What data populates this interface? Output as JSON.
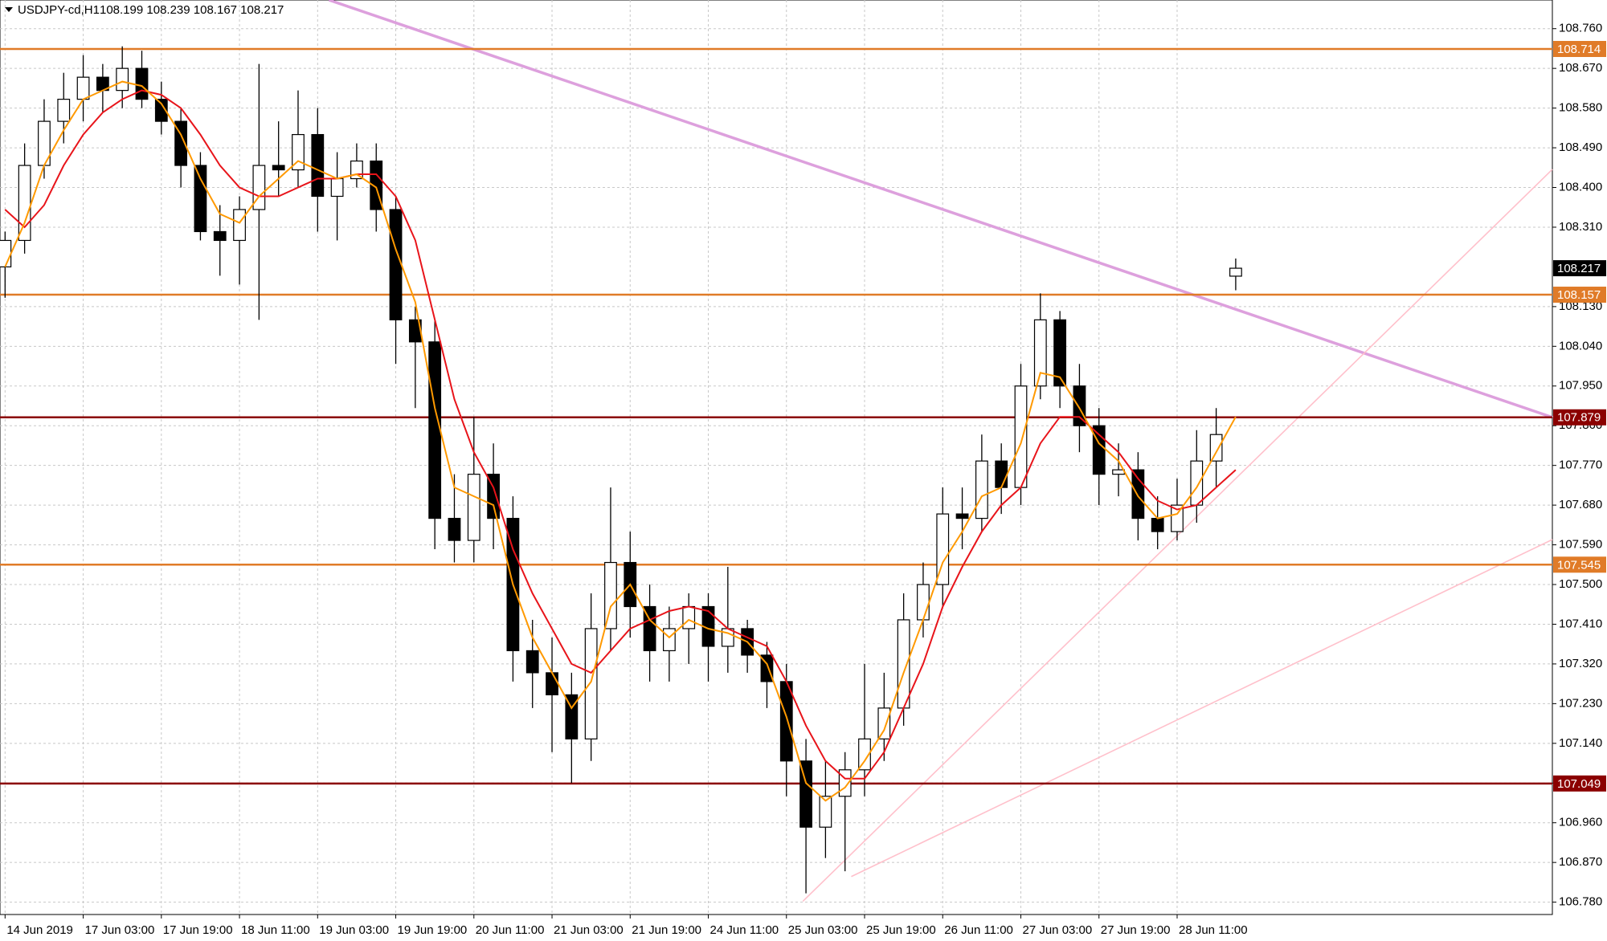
{
  "chart_data": {
    "type": "candlestick",
    "title": "USDJPY-cd,H1",
    "ohlc_label": "108.199 108.239 108.167 108.217",
    "open": [
      108.22,
      108.28,
      108.45,
      108.55,
      108.6,
      108.65,
      108.62,
      108.67,
      108.6,
      108.55,
      108.45,
      108.3,
      108.28,
      108.35,
      108.45,
      108.44,
      108.52,
      108.38,
      108.42,
      108.46,
      108.35,
      108.1,
      108.05,
      107.65,
      107.6,
      107.75,
      107.65,
      107.35,
      107.3,
      107.25,
      107.15,
      107.4,
      107.55,
      107.45,
      107.35,
      107.4,
      107.45,
      107.36,
      107.4,
      107.34,
      107.28,
      107.1,
      106.95,
      107.02,
      107.08,
      107.15,
      107.22,
      107.42,
      107.5,
      107.66,
      107.65,
      107.78,
      107.72,
      107.95,
      108.1,
      107.95,
      107.86,
      107.75,
      107.76,
      107.65,
      107.62,
      107.68,
      107.78,
      108.199
    ],
    "high": [
      108.3,
      108.5,
      108.6,
      108.66,
      108.7,
      108.68,
      108.72,
      108.71,
      108.64,
      108.58,
      108.48,
      108.36,
      108.38,
      108.68,
      108.55,
      108.62,
      108.58,
      108.48,
      108.5,
      108.5,
      108.38,
      108.13,
      108.1,
      107.75,
      107.88,
      107.82,
      107.7,
      107.42,
      107.38,
      107.3,
      107.48,
      107.72,
      107.62,
      107.5,
      107.45,
      107.48,
      107.48,
      107.54,
      107.42,
      107.37,
      107.32,
      107.15,
      107.1,
      107.12,
      107.32,
      107.3,
      107.48,
      107.55,
      107.72,
      107.72,
      107.84,
      107.82,
      108.0,
      108.16,
      108.12,
      108.0,
      107.9,
      107.82,
      107.8,
      107.7,
      107.74,
      107.85,
      107.9,
      108.239
    ],
    "low": [
      108.15,
      108.25,
      108.42,
      108.5,
      108.55,
      108.57,
      108.58,
      108.58,
      108.52,
      108.4,
      108.28,
      108.2,
      108.18,
      108.1,
      108.38,
      108.4,
      108.3,
      108.28,
      108.4,
      108.3,
      108.0,
      107.9,
      107.58,
      107.55,
      107.55,
      107.58,
      107.28,
      107.22,
      107.12,
      107.05,
      107.1,
      107.35,
      107.38,
      107.28,
      107.28,
      107.32,
      107.28,
      107.3,
      107.3,
      107.22,
      107.02,
      106.8,
      106.88,
      106.85,
      107.02,
      107.1,
      107.18,
      107.38,
      107.45,
      107.58,
      107.62,
      107.66,
      107.68,
      107.92,
      107.9,
      107.8,
      107.68,
      107.7,
      107.6,
      107.58,
      107.6,
      107.64,
      107.72,
      108.167
    ],
    "close": [
      108.28,
      108.45,
      108.55,
      108.6,
      108.65,
      108.62,
      108.67,
      108.6,
      108.55,
      108.45,
      108.3,
      108.28,
      108.35,
      108.45,
      108.44,
      108.52,
      108.38,
      108.42,
      108.46,
      108.35,
      108.1,
      108.05,
      107.65,
      107.6,
      107.75,
      107.65,
      107.35,
      107.3,
      107.25,
      107.15,
      107.4,
      107.55,
      107.45,
      107.35,
      107.4,
      107.45,
      107.36,
      107.4,
      107.34,
      107.28,
      107.1,
      106.95,
      107.02,
      107.08,
      107.15,
      107.22,
      107.42,
      107.5,
      107.66,
      107.65,
      107.78,
      107.72,
      107.95,
      108.1,
      107.95,
      107.86,
      107.75,
      107.76,
      107.65,
      107.62,
      107.68,
      107.78,
      107.84,
      108.217
    ],
    "ma_fast": {
      "color": "#ff9900",
      "values": [
        108.22,
        108.32,
        108.45,
        108.53,
        108.6,
        108.62,
        108.64,
        108.63,
        108.59,
        108.52,
        108.42,
        108.34,
        108.32,
        108.38,
        108.42,
        108.46,
        108.44,
        108.42,
        108.43,
        108.4,
        108.26,
        108.14,
        107.9,
        107.72,
        107.7,
        107.68,
        107.5,
        107.38,
        107.3,
        107.22,
        107.28,
        107.45,
        107.5,
        107.42,
        107.38,
        107.42,
        107.4,
        107.39,
        107.37,
        107.32,
        107.2,
        107.05,
        107.01,
        107.04,
        107.1,
        107.17,
        107.3,
        107.42,
        107.55,
        107.62,
        107.7,
        107.72,
        107.82,
        107.98,
        107.97,
        107.9,
        107.82,
        107.78,
        107.7,
        107.65,
        107.66,
        107.72,
        107.8,
        107.88
      ]
    },
    "ma_slow": {
      "color": "#e8141a",
      "values": [
        108.35,
        108.31,
        108.36,
        108.45,
        108.52,
        108.57,
        108.6,
        108.62,
        108.61,
        108.58,
        108.52,
        108.45,
        108.4,
        108.38,
        108.38,
        108.4,
        108.42,
        108.42,
        108.43,
        108.43,
        108.38,
        108.28,
        108.1,
        107.92,
        107.8,
        107.72,
        107.58,
        107.48,
        107.4,
        107.32,
        107.3,
        107.35,
        107.4,
        107.42,
        107.44,
        107.45,
        107.44,
        107.4,
        107.38,
        107.36,
        107.28,
        107.18,
        107.1,
        107.06,
        107.06,
        107.12,
        107.22,
        107.32,
        107.45,
        107.54,
        107.62,
        107.68,
        107.72,
        107.82,
        107.88,
        107.88,
        107.84,
        107.8,
        107.74,
        107.69,
        107.67,
        107.68,
        107.72,
        107.76
      ]
    },
    "levels": [
      {
        "value": 108.714,
        "color": "#e07b28"
      },
      {
        "value": 108.157,
        "color": "#e07b28"
      },
      {
        "value": 107.879,
        "color": "#8b0000"
      },
      {
        "value": 107.545,
        "color": "#e07b28"
      },
      {
        "value": 107.049,
        "color": "#8b0000"
      }
    ],
    "last_price": 108.217,
    "trendlines": [
      {
        "x": [
          16.58,
          79.21
        ],
        "y": [
          108.825,
          107.879
        ],
        "color": "#dda0dd"
      },
      {
        "x": [
          40.84,
          79.21
        ],
        "y": [
          106.782,
          108.441
        ],
        "color": "#ffc0cb"
      },
      {
        "x": [
          43.32,
          79.21
        ],
        "y": [
          106.838,
          107.602
        ],
        "color": "#ffc0cb"
      }
    ],
    "xlim": [
      -0.26,
      79.21
    ],
    "ylim": [
      106.752,
      108.825
    ],
    "xticks": [
      {
        "value": 0,
        "label": "14 Jun 2019"
      },
      {
        "value": 4,
        "label": "17 Jun 03:00"
      },
      {
        "value": 8,
        "label": "17 Jun 19:00"
      },
      {
        "value": 12,
        "label": "18 Jun 11:00"
      },
      {
        "value": 16,
        "label": "19 Jun 03:00"
      },
      {
        "value": 20,
        "label": "19 Jun 19:00"
      },
      {
        "value": 24,
        "label": "20 Jun 11:00"
      },
      {
        "value": 28,
        "label": "21 Jun 03:00"
      },
      {
        "value": 32,
        "label": "21 Jun 19:00"
      },
      {
        "value": 36,
        "label": "24 Jun 11:00"
      },
      {
        "value": 40,
        "label": "25 Jun 03:00"
      },
      {
        "value": 44,
        "label": "25 Jun 19:00"
      },
      {
        "value": 48,
        "label": "26 Jun 11:00"
      },
      {
        "value": 52,
        "label": "27 Jun 03:00"
      },
      {
        "value": 56,
        "label": "27 Jun 19:00"
      },
      {
        "value": 60,
        "label": "28 Jun 11:00"
      }
    ],
    "yticks": [
      {
        "value": 106.78,
        "label": "106.780"
      },
      {
        "value": 106.87,
        "label": "106.870"
      },
      {
        "value": 106.96,
        "label": "106.960"
      },
      {
        "value": 107.05,
        "label": "107.050"
      },
      {
        "value": 107.14,
        "label": "107.140"
      },
      {
        "value": 107.23,
        "label": "107.230"
      },
      {
        "value": 107.32,
        "label": "107.320"
      },
      {
        "value": 107.41,
        "label": "107.410"
      },
      {
        "value": 107.5,
        "label": "107.500"
      },
      {
        "value": 107.59,
        "label": "107.590"
      },
      {
        "value": 107.68,
        "label": "107.680"
      },
      {
        "value": 107.77,
        "label": "107.770"
      },
      {
        "value": 107.86,
        "label": "107.860"
      },
      {
        "value": 107.95,
        "label": "107.950"
      },
      {
        "value": 108.04,
        "label": "108.040"
      },
      {
        "value": 108.13,
        "label": "108.130"
      },
      {
        "value": 108.31,
        "label": "108.310"
      },
      {
        "value": 108.4,
        "label": "108.400"
      },
      {
        "value": 108.49,
        "label": "108.490"
      },
      {
        "value": 108.58,
        "label": "108.580"
      },
      {
        "value": 108.67,
        "label": "108.670"
      },
      {
        "value": 108.76,
        "label": "108.760"
      }
    ],
    "grid": true
  }
}
